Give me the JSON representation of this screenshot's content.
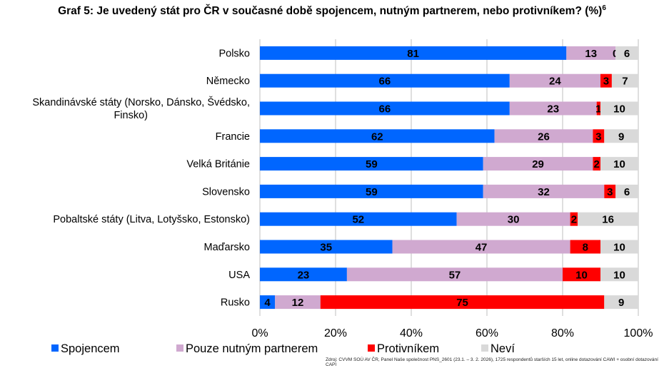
{
  "chart_data": {
    "type": "bar",
    "orientation": "horizontal",
    "stacked": true,
    "title": "Graf 5: Je uvedený stát pro ČR v současné době spojencem, nutným partnerem, nebo protivníkem? (%)",
    "title_footnote": "6",
    "categories": [
      "Polsko",
      "Německo",
      "Skandinávské státy (Norsko, Dánsko, Švédsko, Finsko)",
      "Francie",
      "Velká Británie",
      "Slovensko",
      "Pobaltské státy (Litva, Lotyšsko, Estonsko)",
      "Maďarsko",
      "USA",
      "Rusko"
    ],
    "series": [
      {
        "name": "Spojencem",
        "color": "#0066FF",
        "values": [
          81,
          66,
          66,
          62,
          59,
          59,
          52,
          35,
          23,
          4
        ]
      },
      {
        "name": "Pouze nutným partnerem",
        "color": "#D0A9D0",
        "values": [
          13,
          24,
          23,
          26,
          29,
          32,
          30,
          47,
          57,
          12
        ]
      },
      {
        "name": "Protivníkem",
        "color": "#FF0000",
        "values": [
          0,
          3,
          1,
          3,
          2,
          3,
          2,
          8,
          10,
          75
        ]
      },
      {
        "name": "Neví",
        "color": "#D9D9D9",
        "values": [
          6,
          7,
          10,
          9,
          10,
          6,
          16,
          10,
          10,
          9
        ]
      }
    ],
    "xlim": [
      0,
      100
    ],
    "xticks": [
      "0%",
      "20%",
      "40%",
      "60%",
      "80%",
      "100%"
    ],
    "grid": "vertical",
    "legend": "bottom",
    "source": "Zdroj: CVVM SOÚ AV ČR, Panel Naše společnost PNS_2601 (23.1. – 3. 2. 2026), 1725 respondentů starších 15 let, online dotazování CAWI + osobní dotazování CAPI"
  }
}
